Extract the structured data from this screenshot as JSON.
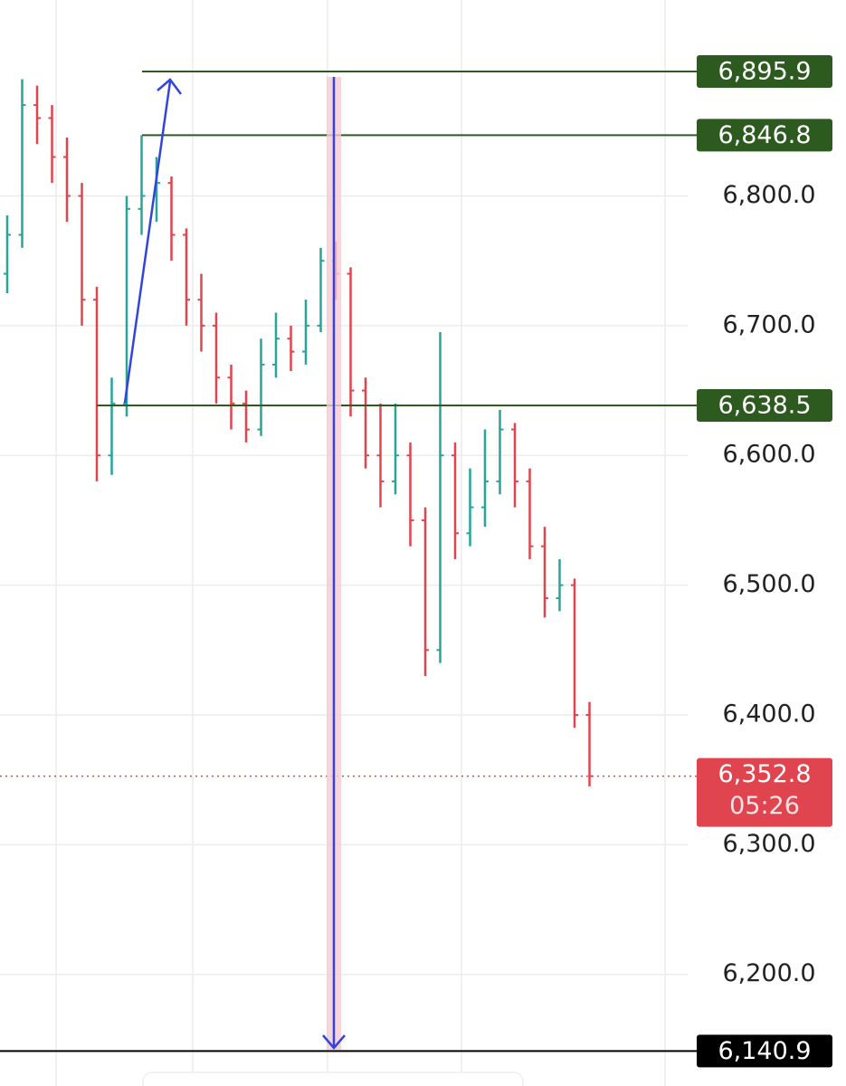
{
  "chart_data": {
    "type": "ohlc",
    "ylim": [
      6114,
      6951
    ],
    "yticks": [
      {
        "value": 6800,
        "label": "6,800.0"
      },
      {
        "value": 6700,
        "label": "6,700.0"
      },
      {
        "value": 6600,
        "label": "6,600.0"
      },
      {
        "value": 6500,
        "label": "6,500.0"
      },
      {
        "value": 6400,
        "label": "6,400.0"
      },
      {
        "value": 6300,
        "label": "6,300.0"
      },
      {
        "value": 6200,
        "label": "6,200.0"
      }
    ],
    "grid": true,
    "up_color": "#26a69a",
    "down_color": "#e0454f",
    "open": [
      6740,
      6770,
      6870,
      6860,
      6830,
      6800,
      6720,
      6600,
      6640,
      6790,
      6800,
      6810,
      6770,
      6720,
      6700,
      6660,
      6640,
      6620,
      6670,
      6690,
      6680,
      6700,
      6750,
      6740,
      6650,
      6600,
      6580,
      6600,
      6550,
      6450,
      6600,
      6540,
      6560,
      6580,
      6620,
      6580,
      6530,
      6490,
      6500,
      6400
    ],
    "high": [
      6785,
      6890,
      6885,
      6870,
      6845,
      6810,
      6730,
      6660,
      6800,
      6846.8,
      6830,
      6815,
      6775,
      6740,
      6710,
      6670,
      6650,
      6690,
      6710,
      6700,
      6720,
      6760,
      6765,
      6745,
      6660,
      6640,
      6640,
      6610,
      6560,
      6695,
      6610,
      6590,
      6620,
      6635,
      6625,
      6590,
      6545,
      6520,
      6505,
      6410
    ],
    "low": [
      6725,
      6760,
      6840,
      6810,
      6780,
      6700,
      6580,
      6585,
      6630,
      6770,
      6780,
      6750,
      6700,
      6680,
      6640,
      6620,
      6610,
      6615,
      6660,
      6665,
      6670,
      6695,
      6720,
      6630,
      6590,
      6560,
      6570,
      6530,
      6430,
      6440,
      6520,
      6530,
      6545,
      6570,
      6560,
      6520,
      6475,
      6480,
      6390,
      6345
    ],
    "close": [
      6770,
      6870,
      6860,
      6830,
      6800,
      6720,
      6600,
      6640,
      6790,
      6800,
      6810,
      6770,
      6720,
      6700,
      6660,
      6640,
      6620,
      6670,
      6690,
      6680,
      6700,
      6750,
      6740,
      6650,
      6600,
      6580,
      6600,
      6550,
      6450,
      6600,
      6540,
      6560,
      6580,
      6620,
      6580,
      6530,
      6490,
      6500,
      6400,
      6352.8
    ],
    "levels": [
      {
        "value": 6895.9,
        "label": "6,895.9",
        "color": "#2d5a1f"
      },
      {
        "value": 6846.8,
        "label": "6,846.8",
        "color": "#2d5a1f"
      },
      {
        "value": 6638.5,
        "label": "6,638.5",
        "color": "#2d5a1f"
      },
      {
        "value": 6140.9,
        "label": "6,140.9",
        "color": "#000000"
      }
    ],
    "last_price": {
      "value": 6352.8,
      "label": "6,352.8",
      "countdown": "05:26",
      "color": "#e0454f"
    }
  }
}
